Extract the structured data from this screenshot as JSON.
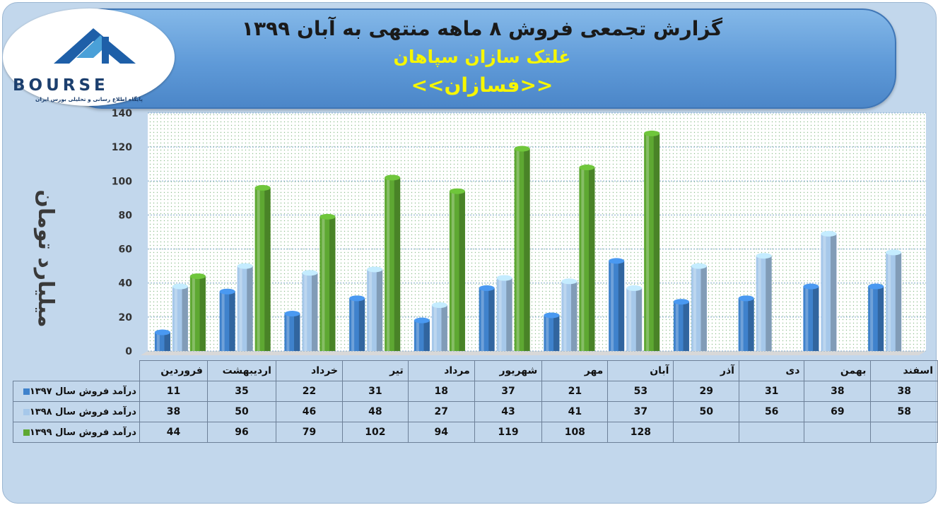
{
  "header": {
    "title": "گزارش تجمعی فروش ۸ ماهه منتهی به آبان ۱۳۹۹",
    "company": "غلتک سازان سپاهان",
    "symbol": "<<فسازان>>"
  },
  "logo": {
    "brand": "BOURSE",
    "tagline": "پایگاه اطلاع رسانی و تحلیلی بورس ایران"
  },
  "colors": {
    "series_1397": "#3f82cc",
    "series_1398": "#a6c8ea",
    "series_1399": "#5ea832",
    "background": "#c2d7ec",
    "banner": "#5f9ad8"
  },
  "chart_data": {
    "type": "bar",
    "title": "گزارش تجمعی فروش ۸ ماهه منتهی به آبان ۱۳۹۹",
    "xlabel": "",
    "ylabel": "میلیارد تومان",
    "ylim": [
      0,
      140
    ],
    "yticks": [
      "0",
      "20",
      "40",
      "60",
      "80",
      "100",
      "120",
      "140"
    ],
    "grid": true,
    "legend": "data-table",
    "categories": [
      "فروردین",
      "اردیبهشت",
      "خرداد",
      "تیر",
      "مرداد",
      "شهریور",
      "مهر",
      "آبان",
      "آذر",
      "دی",
      "بهمن",
      "اسفند"
    ],
    "series": [
      {
        "name": "درآمد فروش سال ۱۳۹۷",
        "values": [
          11,
          35,
          22,
          31,
          18,
          37,
          21,
          53,
          29,
          31,
          38,
          38
        ]
      },
      {
        "name": "درآمد فروش سال ۱۳۹۸",
        "values": [
          38,
          50,
          46,
          48,
          27,
          43,
          41,
          37,
          50,
          56,
          69,
          58
        ]
      },
      {
        "name": "درآمد فروش سال ۱۳۹۹",
        "values": [
          44,
          96,
          79,
          102,
          94,
          119,
          108,
          128,
          null,
          null,
          null,
          null
        ]
      }
    ]
  }
}
